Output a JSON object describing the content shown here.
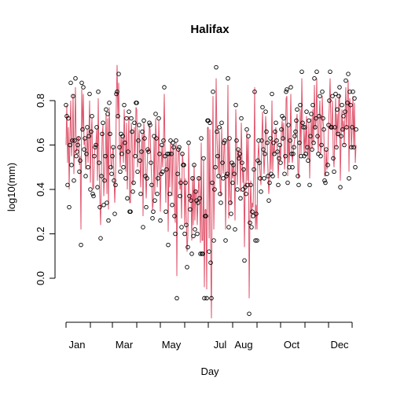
{
  "chart_data": {
    "type": "line",
    "title": "Halifax",
    "xlabel": "Day",
    "ylabel": "log10(mm)",
    "xlim": [
      1,
      365
    ],
    "ylim": [
      -0.2,
      0.95
    ],
    "x_ticks": [
      1,
      32,
      60,
      91,
      121,
      152,
      182,
      213,
      244,
      274,
      305,
      335,
      365
    ],
    "x_tick_labels": [
      {
        "day": 15,
        "label": "Jan"
      },
      {
        "day": 75,
        "label": "Mar"
      },
      {
        "day": 135,
        "label": "May"
      },
      {
        "day": 197,
        "label": "Jul"
      },
      {
        "day": 227,
        "label": "Aug"
      },
      {
        "day": 288,
        "label": "Oct"
      },
      {
        "day": 349,
        "label": "Dec"
      }
    ],
    "y_ticks": [
      0.0,
      0.2,
      0.4,
      0.6,
      0.8
    ],
    "y_tick_labels": [
      "0.0",
      "0.2",
      "0.4",
      "0.6",
      "0.8"
    ],
    "series": [
      {
        "style": "points",
        "marker": "circle-open",
        "color": "#000000",
        "description_values": "observed daily log10 precipitation, 365 points"
      },
      {
        "style": "line",
        "color": "#DF536B",
        "description_values": "fitted daily curve"
      }
    ],
    "observed": [
      0.78,
      0.73,
      0.42,
      0.72,
      0.32,
      0.6,
      0.88,
      0.51,
      0.62,
      0.82,
      0.44,
      0.62,
      0.9,
      0.55,
      0.57,
      0.6,
      0.63,
      0.48,
      0.53,
      0.15,
      0.88,
      0.67,
      0.86,
      0.58,
      0.63,
      0.46,
      0.56,
      0.68,
      0.5,
      0.64,
      0.83,
      0.4,
      0.66,
      0.73,
      0.38,
      0.37,
      0.55,
      0.59,
      0.6,
      0.68,
      0.41,
      0.84,
      0.52,
      0.32,
      0.18,
      0.46,
      0.65,
      0.7,
      0.33,
      0.44,
      0.55,
      0.76,
      0.34,
      0.74,
      0.26,
      0.79,
      0.65,
      0.5,
      0.47,
      0.55,
      0.59,
      0.44,
      0.29,
      0.42,
      0.83,
      0.84,
      0.73,
      0.92,
      0.59,
      0.48,
      0.65,
      0.56,
      0.64,
      0.5,
      0.78,
      0.61,
      0.45,
      0.72,
      0.36,
      0.57,
      0.75,
      0.3,
      0.3,
      0.72,
      0.66,
      0.39,
      0.43,
      0.7,
      0.55,
      0.79,
      0.79,
      0.48,
      0.62,
      0.69,
      0.53,
      0.38,
      0.57,
      0.66,
      0.23,
      0.71,
      0.63,
      0.46,
      0.32,
      0.45,
      0.58,
      0.57,
      0.7,
      0.69,
      0.52,
      0.42,
      0.27,
      0.3,
      0.64,
      0.35,
      0.74,
      0.63,
      0.38,
      0.45,
      0.72,
      0.56,
      0.26,
      0.47,
      0.6,
      0.48,
      0.62,
      0.86,
      0.55,
      0.3,
      0.49,
      0.56,
      0.15,
      0.56,
      0.38,
      0.62,
      0.56,
      0.33,
      0.61,
      0.59,
      0.28,
      0.2,
      0.62,
      -0.09,
      0.47,
      0.58,
      0.59,
      0.37,
      0.43,
      0.23,
      0.56,
      0.51,
      0.51,
      0.2,
      0.43,
      0.24,
      0.05,
      0.14,
      0.61,
      0.37,
      0.31,
      0.35,
      0.11,
      0.45,
      0.19,
      0.51,
      0.22,
      0.39,
      0.35,
      0.2,
      0.34,
      0.45,
      0.36,
      0.11,
      0.63,
      0.11,
      0.11,
      0.54,
      -0.09,
      0.28,
      0.28,
      -0.09,
      0.71,
      0.71,
      0.12,
      0.7,
      0.07,
      -0.09,
      0.43,
      0.84,
      0.17,
      0.4,
      0.5,
      0.95,
      0.66,
      0.55,
      0.46,
      0.68,
      0.38,
      0.34,
      0.7,
      0.52,
      0.45,
      0.61,
      0.62,
      0.17,
      0.46,
      0.47,
      0.9,
      0.23,
      0.63,
      0.34,
      0.29,
      0.52,
      0.43,
      0.51,
      0.47,
      0.22,
      0.78,
      0.62,
      0.4,
      0.58,
      0.54,
      0.56,
      0.36,
      0.72,
      0.52,
      0.4,
      0.49,
      0.08,
      0.41,
      0.38,
      0.67,
      0.42,
      0.64,
      -0.16,
      0.25,
      0.42,
      0.23,
      0.3,
      0.28,
      0.49,
      0.84,
      0.17,
      0.29,
      0.17,
      0.53,
      0.62,
      0.52,
      0.45,
      0.39,
      0.62,
      0.77,
      0.58,
      0.45,
      0.56,
      0.75,
      0.66,
      0.61,
      0.46,
      0.35,
      0.43,
      0.63,
      0.47,
      0.83,
      0.46,
      0.61,
      0.56,
      0.66,
      0.7,
      0.62,
      0.57,
      0.42,
      0.54,
      0.6,
      0.52,
      0.67,
      0.73,
      0.63,
      0.72,
      0.47,
      0.55,
      0.84,
      0.85,
      0.43,
      0.69,
      0.5,
      0.62,
      0.86,
      0.56,
      0.5,
      0.56,
      0.59,
      0.64,
      0.66,
      0.71,
      0.76,
      0.46,
      0.42,
      0.61,
      0.78,
      0.55,
      0.93,
      0.7,
      0.68,
      0.55,
      0.68,
      0.56,
      0.75,
      0.59,
      0.53,
      0.71,
      0.42,
      0.64,
      0.74,
      0.58,
      0.78,
      0.61,
      0.9,
      0.68,
      0.72,
      0.93,
      0.64,
      0.56,
      0.73,
      0.82,
      0.55,
      0.6,
      0.84,
      0.72,
      0.67,
      0.44,
      0.43,
      0.58,
      0.47,
      0.51,
      0.69,
      0.8,
      0.93,
      0.68,
      0.68,
      0.82,
      0.54,
      0.48,
      0.68,
      0.83,
      0.59,
      0.76,
      0.65,
      0.82,
      0.86,
      0.41,
      0.64,
      0.78,
      0.67,
      0.73,
      0.6,
      0.75,
      0.89,
      0.68,
      0.79,
      0.92,
      0.45,
      0.84,
      0.78,
      0.59,
      0.68,
      0.84,
      0.59,
      0.81,
      0.5,
      0.67
    ],
    "fitted": [
      0.6,
      0.78,
      0.52,
      0.68,
      0.4,
      0.64,
      0.8,
      0.55,
      0.63,
      0.83,
      0.47,
      0.64,
      0.86,
      0.57,
      0.58,
      0.62,
      0.64,
      0.51,
      0.55,
      0.22,
      0.85,
      0.66,
      0.83,
      0.6,
      0.63,
      0.49,
      0.57,
      0.67,
      0.52,
      0.64,
      0.8,
      0.43,
      0.65,
      0.72,
      0.41,
      0.4,
      0.56,
      0.59,
      0.6,
      0.67,
      0.44,
      0.81,
      0.53,
      0.36,
      0.24,
      0.48,
      0.64,
      0.69,
      0.37,
      0.46,
      0.56,
      0.74,
      0.38,
      0.72,
      0.31,
      0.77,
      0.64,
      0.52,
      0.49,
      0.56,
      0.59,
      0.46,
      0.34,
      0.45,
      0.8,
      0.96,
      0.72,
      0.88,
      0.59,
      0.5,
      0.64,
      0.57,
      0.63,
      0.52,
      0.76,
      0.61,
      0.48,
      0.7,
      0.4,
      0.58,
      0.73,
      0.34,
      0.34,
      0.7,
      0.65,
      0.42,
      0.46,
      0.68,
      0.56,
      0.77,
      0.76,
      0.5,
      0.62,
      0.67,
      0.54,
      0.41,
      0.58,
      0.65,
      0.28,
      0.7,
      0.62,
      0.48,
      0.36,
      0.48,
      0.58,
      0.57,
      0.69,
      0.67,
      0.53,
      0.44,
      0.31,
      0.34,
      0.63,
      0.38,
      0.72,
      0.62,
      0.41,
      0.47,
      0.71,
      0.56,
      0.3,
      0.49,
      0.6,
      0.5,
      0.61,
      0.83,
      0.56,
      0.34,
      0.51,
      0.56,
      0.21,
      0.56,
      0.41,
      0.61,
      0.56,
      0.37,
      0.6,
      0.59,
      0.32,
      0.25,
      0.61,
      0.01,
      0.49,
      0.57,
      0.58,
      0.4,
      0.45,
      0.27,
      0.56,
      0.52,
      0.52,
      0.24,
      0.45,
      0.28,
      0.12,
      0.19,
      0.6,
      0.39,
      0.35,
      0.38,
      0.17,
      0.46,
      0.24,
      0.51,
      0.26,
      0.4,
      0.37,
      0.24,
      0.37,
      0.46,
      0.38,
      0.16,
      0.61,
      0.17,
      0.17,
      0.53,
      -0.04,
      0.31,
      0.31,
      -0.05,
      0.68,
      0.68,
      0.18,
      0.67,
      0.13,
      -0.18,
      0.44,
      0.82,
      0.22,
      0.42,
      0.51,
      0.9,
      0.64,
      0.54,
      0.47,
      0.66,
      0.41,
      0.37,
      0.68,
      0.52,
      0.47,
      0.6,
      0.61,
      0.22,
      0.47,
      0.48,
      0.87,
      0.27,
      0.62,
      0.37,
      0.33,
      0.52,
      0.45,
      0.52,
      0.48,
      0.26,
      0.76,
      0.61,
      0.42,
      0.58,
      0.54,
      0.56,
      0.39,
      0.7,
      0.53,
      0.43,
      0.5,
      0.14,
      0.43,
      0.41,
      0.66,
      0.44,
      0.63,
      -0.09,
      0.29,
      0.44,
      0.27,
      0.34,
      0.32,
      0.5,
      0.86,
      0.22,
      0.33,
      0.22,
      0.53,
      0.61,
      0.53,
      0.47,
      0.42,
      0.61,
      0.75,
      0.58,
      0.47,
      0.56,
      0.73,
      0.65,
      0.6,
      0.48,
      0.38,
      0.45,
      0.62,
      0.49,
      0.8,
      0.48,
      0.6,
      0.56,
      0.65,
      0.68,
      0.61,
      0.57,
      0.45,
      0.54,
      0.6,
      0.53,
      0.66,
      0.71,
      0.62,
      0.7,
      0.49,
      0.56,
      0.81,
      0.82,
      0.46,
      0.68,
      0.52,
      0.62,
      0.83,
      0.57,
      0.52,
      0.57,
      0.6,
      0.63,
      0.65,
      0.7,
      0.74,
      0.48,
      0.45,
      0.61,
      0.76,
      0.56,
      0.9,
      0.69,
      0.67,
      0.56,
      0.67,
      0.57,
      0.73,
      0.59,
      0.54,
      0.7,
      0.45,
      0.64,
      0.72,
      0.58,
      0.76,
      0.61,
      0.87,
      0.67,
      0.71,
      0.9,
      0.63,
      0.57,
      0.72,
      0.8,
      0.56,
      0.6,
      0.82,
      0.71,
      0.66,
      0.46,
      0.46,
      0.58,
      0.49,
      0.53,
      0.68,
      0.78,
      0.9,
      0.67,
      0.67,
      0.8,
      0.55,
      0.5,
      0.67,
      0.81,
      0.59,
      0.74,
      0.64,
      0.8,
      0.83,
      0.44,
      0.63,
      0.76,
      0.66,
      0.71,
      0.6,
      0.73,
      0.86,
      0.67,
      0.77,
      0.89,
      0.48,
      0.81,
      0.76,
      0.59,
      0.67,
      0.82,
      0.59,
      0.79,
      0.52,
      0.6
    ]
  }
}
